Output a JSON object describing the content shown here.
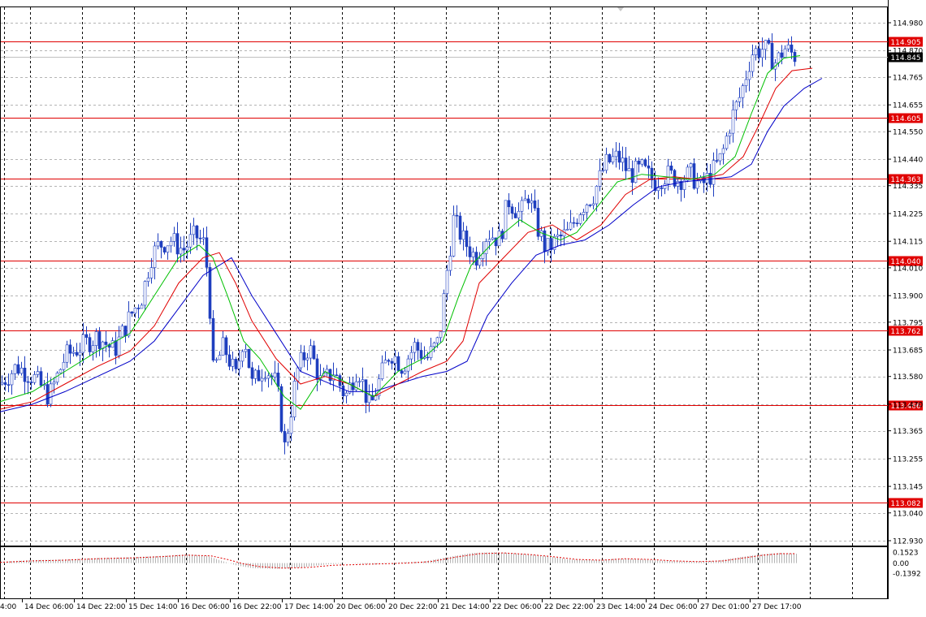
{
  "chart_data": {
    "type": "candlestick",
    "instrument_view": "MetaTrader price chart with moving averages and oscillator",
    "x_labels": [
      "14 Dec 06:00",
      "14 Dec 22:00",
      "15 Dec 14:00",
      "16 Dec 06:00",
      "16 Dec 22:00",
      "17 Dec 14:00",
      "20 Dec 06:00",
      "20 Dec 22:00",
      "21 Dec 14:00",
      "22 Dec 06:00",
      "22 Dec 22:00",
      "23 Dec 14:00",
      "24 Dec 06:00",
      "27 Dec 01:00",
      "27 Dec 17:00"
    ],
    "x_label_cut": "4:00",
    "y_ticks": [
      "114.980",
      "114.870",
      "114.765",
      "114.655",
      "114.550",
      "114.440",
      "114.335",
      "114.225",
      "114.115",
      "114.010",
      "113.900",
      "113.795",
      "113.685",
      "113.580",
      "113.470",
      "113.365",
      "113.255",
      "113.145",
      "113.040",
      "112.930"
    ],
    "ylim": [
      112.93,
      114.98
    ],
    "current_price": "114.845",
    "horizontal_levels": [
      {
        "label": "114.905",
        "value": 114.905
      },
      {
        "label": "114.605",
        "value": 114.605
      },
      {
        "label": "114.363",
        "value": 114.363
      },
      {
        "label": "114.040",
        "value": 114.04
      },
      {
        "label": "113.762",
        "value": 113.762
      },
      {
        "label": "113.466",
        "value": 113.466
      },
      {
        "label": "113.082",
        "value": 113.082
      }
    ],
    "price_path": [
      [
        0,
        113.55
      ],
      [
        20,
        113.62
      ],
      [
        40,
        113.58
      ],
      [
        60,
        113.5
      ],
      [
        80,
        113.66
      ],
      [
        100,
        113.7
      ],
      [
        120,
        113.74
      ],
      [
        140,
        113.68
      ],
      [
        160,
        113.82
      ],
      [
        175,
        113.9
      ],
      [
        185,
        114.05
      ],
      [
        195,
        114.1
      ],
      [
        210,
        114.12
      ],
      [
        225,
        114.08
      ],
      [
        240,
        114.14
      ],
      [
        252,
        114.1
      ],
      [
        258,
        113.85
      ],
      [
        262,
        113.6
      ],
      [
        275,
        113.7
      ],
      [
        290,
        113.58
      ],
      [
        300,
        113.75
      ],
      [
        310,
        113.55
      ],
      [
        325,
        113.62
      ],
      [
        340,
        113.55
      ],
      [
        350,
        113.3
      ],
      [
        358,
        113.45
      ],
      [
        365,
        113.6
      ],
      [
        380,
        113.7
      ],
      [
        395,
        113.55
      ],
      [
        410,
        113.6
      ],
      [
        425,
        113.5
      ],
      [
        440,
        113.62
      ],
      [
        455,
        113.45
      ],
      [
        465,
        113.55
      ],
      [
        480,
        113.68
      ],
      [
        495,
        113.62
      ],
      [
        510,
        113.7
      ],
      [
        525,
        113.65
      ],
      [
        540,
        113.72
      ],
      [
        550,
        114.0
      ],
      [
        558,
        114.2
      ],
      [
        570,
        114.12
      ],
      [
        585,
        114.05
      ],
      [
        600,
        114.15
      ],
      [
        615,
        114.12
      ],
      [
        625,
        114.28
      ],
      [
        640,
        114.22
      ],
      [
        650,
        114.3
      ],
      [
        660,
        114.18
      ],
      [
        672,
        114.08
      ],
      [
        685,
        114.12
      ],
      [
        700,
        114.15
      ],
      [
        715,
        114.25
      ],
      [
        730,
        114.3
      ],
      [
        745,
        114.42
      ],
      [
        760,
        114.45
      ],
      [
        775,
        114.38
      ],
      [
        790,
        114.4
      ],
      [
        805,
        114.35
      ],
      [
        820,
        114.38
      ],
      [
        835,
        114.36
      ],
      [
        850,
        114.38
      ],
      [
        862,
        114.33
      ],
      [
        875,
        114.38
      ],
      [
        888,
        114.45
      ],
      [
        900,
        114.6
      ],
      [
        912,
        114.7
      ],
      [
        925,
        114.86
      ],
      [
        940,
        114.88
      ],
      [
        955,
        114.82
      ],
      [
        965,
        114.88
      ],
      [
        978,
        114.85
      ]
    ],
    "ma_green": [
      [
        0,
        113.48
      ],
      [
        40,
        113.52
      ],
      [
        80,
        113.6
      ],
      [
        120,
        113.68
      ],
      [
        160,
        113.75
      ],
      [
        190,
        113.9
      ],
      [
        220,
        114.05
      ],
      [
        245,
        114.1
      ],
      [
        262,
        114.05
      ],
      [
        280,
        113.9
      ],
      [
        300,
        113.72
      ],
      [
        320,
        113.65
      ],
      [
        350,
        113.5
      ],
      [
        370,
        113.45
      ],
      [
        400,
        113.6
      ],
      [
        430,
        113.55
      ],
      [
        460,
        113.5
      ],
      [
        490,
        113.6
      ],
      [
        520,
        113.65
      ],
      [
        545,
        113.72
      ],
      [
        565,
        113.9
      ],
      [
        580,
        114.02
      ],
      [
        610,
        114.12
      ],
      [
        640,
        114.2
      ],
      [
        665,
        114.15
      ],
      [
        690,
        114.12
      ],
      [
        710,
        114.15
      ],
      [
        735,
        114.25
      ],
      [
        760,
        114.35
      ],
      [
        790,
        114.38
      ],
      [
        820,
        114.37
      ],
      [
        850,
        114.36
      ],
      [
        880,
        114.38
      ],
      [
        905,
        114.45
      ],
      [
        925,
        114.62
      ],
      [
        945,
        114.78
      ],
      [
        965,
        114.84
      ],
      [
        985,
        114.85
      ]
    ],
    "ma_red": [
      [
        0,
        113.45
      ],
      [
        40,
        113.48
      ],
      [
        80,
        113.55
      ],
      [
        120,
        113.62
      ],
      [
        160,
        113.68
      ],
      [
        190,
        113.78
      ],
      [
        220,
        113.95
      ],
      [
        250,
        114.05
      ],
      [
        270,
        114.07
      ],
      [
        290,
        113.95
      ],
      [
        310,
        113.8
      ],
      [
        340,
        113.65
      ],
      [
        370,
        113.55
      ],
      [
        400,
        113.58
      ],
      [
        430,
        113.55
      ],
      [
        460,
        113.5
      ],
      [
        490,
        113.55
      ],
      [
        520,
        113.6
      ],
      [
        550,
        113.64
      ],
      [
        570,
        113.72
      ],
      [
        590,
        113.95
      ],
      [
        620,
        114.05
      ],
      [
        650,
        114.15
      ],
      [
        680,
        114.18
      ],
      [
        710,
        114.12
      ],
      [
        740,
        114.18
      ],
      [
        770,
        114.3
      ],
      [
        800,
        114.36
      ],
      [
        830,
        114.37
      ],
      [
        860,
        114.36
      ],
      [
        890,
        114.38
      ],
      [
        915,
        114.45
      ],
      [
        935,
        114.58
      ],
      [
        955,
        114.72
      ],
      [
        975,
        114.79
      ],
      [
        1000,
        114.8
      ]
    ],
    "ma_blue": [
      [
        0,
        113.44
      ],
      [
        40,
        113.47
      ],
      [
        80,
        113.52
      ],
      [
        120,
        113.58
      ],
      [
        160,
        113.64
      ],
      [
        190,
        113.72
      ],
      [
        220,
        113.85
      ],
      [
        250,
        113.98
      ],
      [
        285,
        114.05
      ],
      [
        310,
        113.9
      ],
      [
        340,
        113.75
      ],
      [
        370,
        113.6
      ],
      [
        400,
        113.56
      ],
      [
        430,
        113.52
      ],
      [
        460,
        113.52
      ],
      [
        490,
        113.55
      ],
      [
        520,
        113.58
      ],
      [
        550,
        113.6
      ],
      [
        575,
        113.64
      ],
      [
        600,
        113.82
      ],
      [
        630,
        113.95
      ],
      [
        660,
        114.06
      ],
      [
        690,
        114.1
      ],
      [
        720,
        114.12
      ],
      [
        750,
        114.18
      ],
      [
        780,
        114.26
      ],
      [
        810,
        114.33
      ],
      [
        840,
        114.35
      ],
      [
        870,
        114.36
      ],
      [
        900,
        114.37
      ],
      [
        925,
        114.42
      ],
      [
        945,
        114.55
      ],
      [
        965,
        114.65
      ],
      [
        990,
        114.72
      ],
      [
        1012,
        114.76
      ]
    ],
    "oscillator": {
      "ticks": [
        "0.1523",
        "0.00",
        "-0.1392"
      ],
      "ylim": [
        -0.1392,
        0.1523
      ],
      "hist": [
        [
          0,
          0.02
        ],
        [
          40,
          0.04
        ],
        [
          80,
          0.05
        ],
        [
          120,
          0.07
        ],
        [
          160,
          0.08
        ],
        [
          200,
          0.1
        ],
        [
          230,
          0.12
        ],
        [
          255,
          0.1
        ],
        [
          270,
          0.04
        ],
        [
          290,
          -0.03
        ],
        [
          310,
          -0.07
        ],
        [
          340,
          -0.08
        ],
        [
          370,
          -0.06
        ],
        [
          400,
          -0.02
        ],
        [
          430,
          0.0
        ],
        [
          460,
          -0.02
        ],
        [
          490,
          0.01
        ],
        [
          520,
          0.02
        ],
        [
          550,
          0.08
        ],
        [
          580,
          0.14
        ],
        [
          610,
          0.15
        ],
        [
          640,
          0.13
        ],
        [
          670,
          0.1
        ],
        [
          700,
          0.05
        ],
        [
          730,
          0.04
        ],
        [
          760,
          0.06
        ],
        [
          790,
          0.05
        ],
        [
          820,
          0.03
        ],
        [
          850,
          0.02
        ],
        [
          880,
          0.03
        ],
        [
          910,
          0.08
        ],
        [
          935,
          0.12
        ],
        [
          960,
          0.14
        ],
        [
          980,
          0.13
        ]
      ],
      "signal": [
        [
          0,
          0.01
        ],
        [
          40,
          0.03
        ],
        [
          80,
          0.04
        ],
        [
          120,
          0.06
        ],
        [
          160,
          0.07
        ],
        [
          200,
          0.09
        ],
        [
          230,
          0.11
        ],
        [
          260,
          0.1
        ],
        [
          280,
          0.05
        ],
        [
          300,
          -0.01
        ],
        [
          320,
          -0.05
        ],
        [
          350,
          -0.07
        ],
        [
          380,
          -0.06
        ],
        [
          410,
          -0.03
        ],
        [
          440,
          -0.02
        ],
        [
          470,
          -0.01
        ],
        [
          500,
          0.0
        ],
        [
          530,
          0.02
        ],
        [
          560,
          0.08
        ],
        [
          590,
          0.13
        ],
        [
          620,
          0.14
        ],
        [
          650,
          0.12
        ],
        [
          680,
          0.09
        ],
        [
          710,
          0.05
        ],
        [
          740,
          0.04
        ],
        [
          770,
          0.06
        ],
        [
          800,
          0.05
        ],
        [
          830,
          0.03
        ],
        [
          860,
          0.02
        ],
        [
          890,
          0.03
        ],
        [
          915,
          0.07
        ],
        [
          940,
          0.11
        ],
        [
          960,
          0.13
        ],
        [
          980,
          0.13
        ]
      ]
    }
  }
}
